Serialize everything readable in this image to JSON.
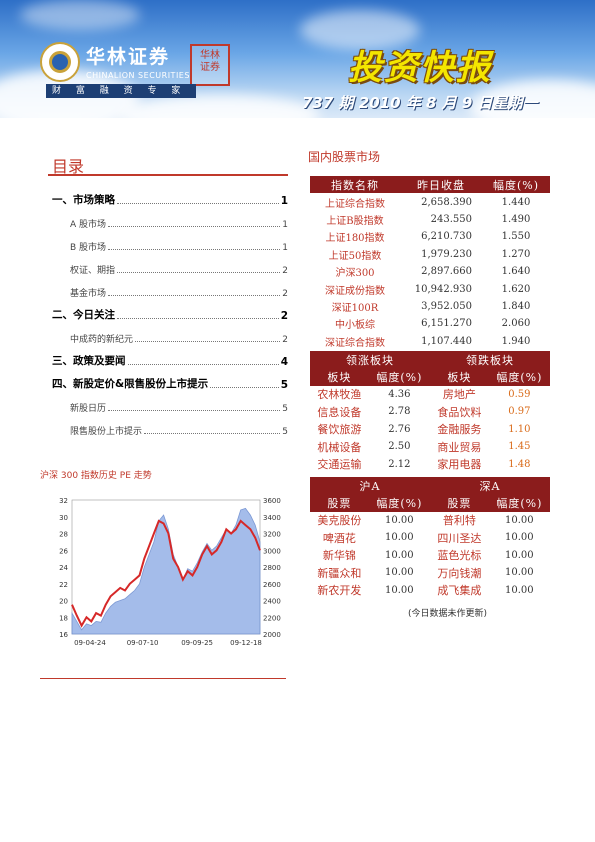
{
  "header": {
    "brand_cn": "华林证券",
    "brand_en": "CHINALION SECURITIES",
    "slogan": "财 富 融 资 专 家",
    "seal": "华林证券",
    "title": "投资快报",
    "issue": "737 期   2010 年 8 月 9 日星期一"
  },
  "toc": {
    "title": "目录",
    "items": [
      {
        "label": "一、市场策略",
        "page": "1",
        "level": 1
      },
      {
        "label": "A 股市场",
        "page": "1",
        "level": 2
      },
      {
        "label": "B 股市场",
        "page": "1",
        "level": 2
      },
      {
        "label": "权证、期指",
        "page": "2",
        "level": 2
      },
      {
        "label": "基金市场",
        "page": "2",
        "level": 2
      },
      {
        "label": "二、今日关注",
        "page": "2",
        "level": 1
      },
      {
        "label": "中成药的新纪元",
        "page": "2",
        "level": 2
      },
      {
        "label": "三、政策及要闻",
        "page": "4",
        "level": 1
      },
      {
        "label": "四、新股定价&限售股份上市提示",
        "page": "5",
        "level": 1
      },
      {
        "label": "新股日历",
        "page": "5",
        "level": 2
      },
      {
        "label": "限售股份上市提示",
        "page": "5",
        "level": 2
      }
    ]
  },
  "chart_title": "沪深 300 指数历史 PE 走势",
  "chart_data": {
    "type": "line",
    "x_ticks": [
      "09-04-24",
      "09-07-10",
      "09-09-25",
      "09-12-18"
    ],
    "y_left_ticks": [
      "16",
      "18",
      "20",
      "22",
      "24",
      "26",
      "28",
      "30",
      "32"
    ],
    "y_right_ticks": [
      "2000",
      "2200",
      "2400",
      "2600",
      "2800",
      "3000",
      "3200",
      "3400",
      "3600"
    ],
    "ylim_left": [
      16,
      32
    ],
    "ylim_right": [
      2000,
      3600
    ],
    "series": [
      {
        "color": "#d62828",
        "axis": "left",
        "values": [
          19.5,
          18.2,
          17.0,
          18.0,
          17.5,
          18.5,
          18.2,
          19.5,
          20.5,
          21.0,
          21.5,
          21.2,
          22.0,
          22.5,
          23.0,
          25.0,
          26.5,
          28.0,
          29.5,
          29.2,
          28.0,
          25.0,
          24.0,
          22.5,
          23.5,
          23.0,
          24.0,
          25.5,
          26.5,
          25.5,
          26.0,
          27.0,
          28.5,
          28.0,
          28.5,
          29.5,
          29.0,
          28.5,
          27.5,
          26.0
        ]
      },
      {
        "color": "#9bb5e8",
        "axis": "right",
        "values": [
          2250,
          2150,
          2050,
          2120,
          2100,
          2150,
          2140,
          2250,
          2330,
          2380,
          2400,
          2420,
          2470,
          2520,
          2600,
          2800,
          2950,
          3100,
          3350,
          3420,
          3250,
          2950,
          2800,
          2650,
          2780,
          2750,
          2850,
          2980,
          3080,
          3000,
          3050,
          3150,
          3250,
          3200,
          3300,
          3480,
          3500,
          3420,
          3300,
          3100
        ]
      }
    ]
  },
  "market": {
    "title": "国内股票市场",
    "index_header": [
      "指数名称",
      "昨日收盘",
      "幅度(%)"
    ],
    "indices": [
      [
        "上证综合指数",
        "2,658.390",
        "1.440"
      ],
      [
        "上证B股指数",
        "243.550",
        "1.490"
      ],
      [
        "上证180指数",
        "6,210.730",
        "1.550"
      ],
      [
        "上证50指数",
        "1,979.230",
        "1.270"
      ],
      [
        "沪深300",
        "2,897.660",
        "1.640"
      ],
      [
        "深证成份指数",
        "10,942.930",
        "1.620"
      ],
      [
        "深证100R",
        "3,952.050",
        "1.840"
      ],
      [
        "中小板综",
        "6,151.270",
        "2.060"
      ],
      [
        "深证综合指数",
        "1,107.440",
        "1.940"
      ]
    ],
    "sector_header": [
      "领涨板块",
      "领跌板块"
    ],
    "sector_sub": [
      "板块",
      "幅度(%)",
      "板块",
      "幅度(%)"
    ],
    "sectors": [
      [
        "农林牧渔",
        "4.36",
        "房地产",
        "0.59"
      ],
      [
        "信息设备",
        "2.78",
        "食品饮料",
        "0.97"
      ],
      [
        "餐饮旅游",
        "2.76",
        "金融服务",
        "1.10"
      ],
      [
        "机械设备",
        "2.50",
        "商业贸易",
        "1.45"
      ],
      [
        "交通运输",
        "2.12",
        "家用电器",
        "1.48"
      ]
    ],
    "stock_header": [
      "沪A",
      "深A"
    ],
    "stock_sub": [
      "股票",
      "幅度(%)",
      "股票",
      "幅度(%)"
    ],
    "stocks": [
      [
        "美克股份",
        "10.00",
        "普利特",
        "10.00"
      ],
      [
        "啤酒花",
        "10.00",
        "四川圣达",
        "10.00"
      ],
      [
        "新华锦",
        "10.00",
        "蓝色光标",
        "10.00"
      ],
      [
        "新疆众和",
        "10.00",
        "万向钱潮",
        "10.00"
      ],
      [
        "新农开发",
        "10.00",
        "成飞集成",
        "10.00"
      ]
    ],
    "note": "(今日数据未作更新)"
  }
}
